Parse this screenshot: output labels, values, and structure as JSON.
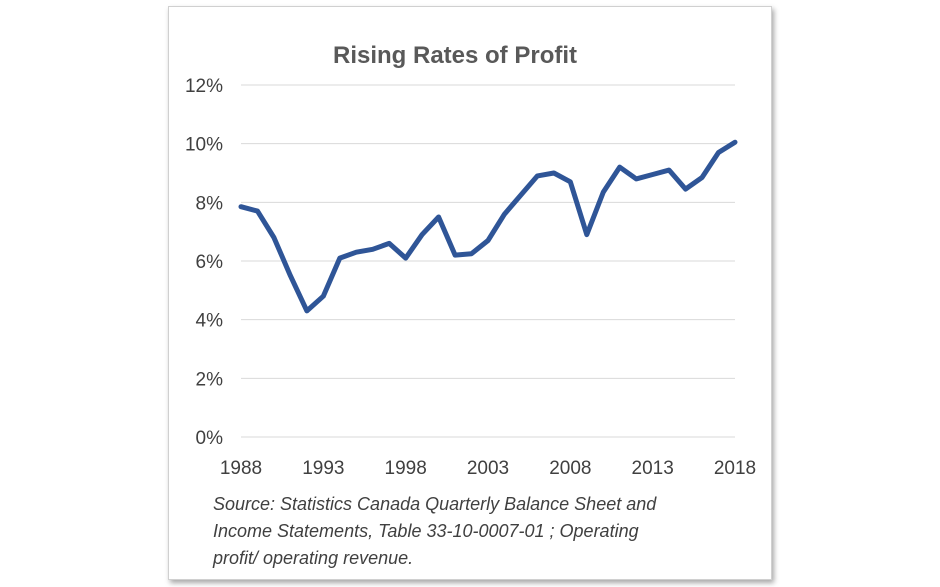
{
  "chart_data": {
    "type": "line",
    "title": "Rising Rates of Profit",
    "xlabel": "",
    "ylabel": "",
    "x": [
      1988,
      1989,
      1990,
      1991,
      1992,
      1993,
      1994,
      1995,
      1996,
      1997,
      1998,
      1999,
      2000,
      2001,
      2002,
      2003,
      2004,
      2005,
      2006,
      2007,
      2008,
      2009,
      2010,
      2011,
      2012,
      2013,
      2014,
      2015,
      2016,
      2017,
      2018
    ],
    "series": [
      {
        "color": "#2f5597",
        "values": [
          7.85,
          7.7,
          6.8,
          5.5,
          4.3,
          4.8,
          6.1,
          6.3,
          6.4,
          6.6,
          6.1,
          6.9,
          7.5,
          6.2,
          6.25,
          6.7,
          7.6,
          8.25,
          8.9,
          9.0,
          8.7,
          6.9,
          8.35,
          9.2,
          8.8,
          8.95,
          9.1,
          8.45,
          8.85,
          9.7,
          10.05
        ]
      }
    ],
    "xlim": [
      1988,
      2018
    ],
    "xticks": [
      "1988",
      "1993",
      "1998",
      "2003",
      "2008",
      "2013",
      "2018"
    ],
    "ylim": [
      0,
      12
    ],
    "yticks": [
      "0%",
      "2%",
      "4%",
      "6%",
      "8%",
      "10%",
      "12%"
    ],
    "grid": "horizontal",
    "legend": "none"
  },
  "source_note": {
    "line1": "Source: Statistics Canada Quarterly Balance Sheet and",
    "line2": "Income Statements, Table  33-10-0007-01 ; Operating",
    "line3": "profit/ operating revenue."
  }
}
